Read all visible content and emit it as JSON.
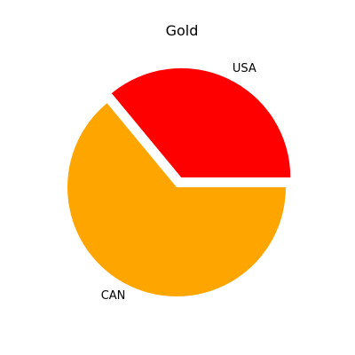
{
  "chart_data": {
    "type": "pie",
    "title": "Gold",
    "categories": [
      "USA",
      "CAN"
    ],
    "values": [
      36,
      64
    ],
    "colors": [
      "#ff0000",
      "#ffa500"
    ],
    "explode": [
      0.1,
      0
    ],
    "start_angle_deg": 0,
    "direction": "counterclockwise",
    "legend": "none"
  }
}
